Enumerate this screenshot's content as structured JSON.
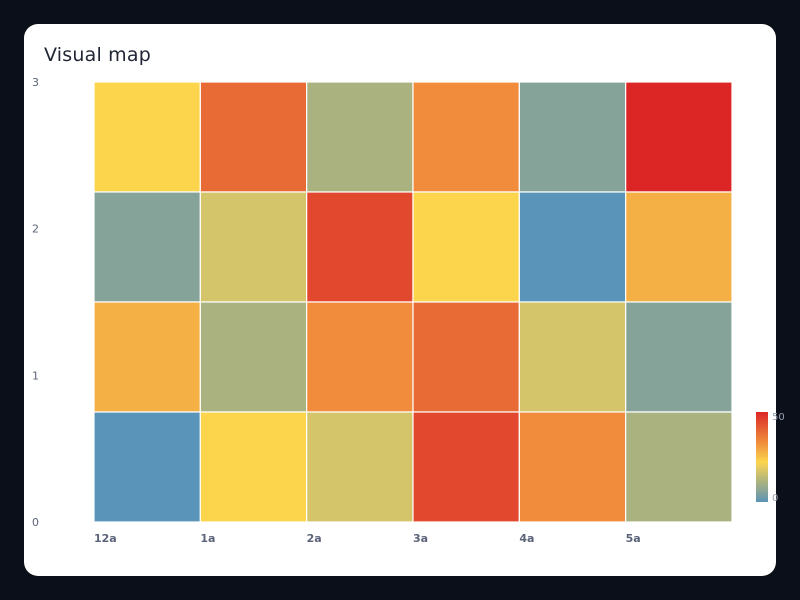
{
  "title": "Visual map",
  "colors": {
    "ramp": [
      "#5a94b8",
      "#86a39a",
      "#aab37f",
      "#d4c46a",
      "#fdd54d",
      "#f4b045",
      "#f08c3b",
      "#e86a35",
      "#e2482e",
      "#dc2626"
    ]
  },
  "chart_data": {
    "type": "heatmap",
    "title": "Visual map",
    "x_categories": [
      "12a",
      "1a",
      "2a",
      "3a",
      "4a",
      "5a"
    ],
    "y_ticks": [
      "0",
      "1",
      "2",
      "3"
    ],
    "rows": 4,
    "cols": 6,
    "values": [
      [
        20,
        39,
        12,
        31,
        6,
        48
      ],
      [
        6,
        15,
        44,
        20,
        0,
        26
      ],
      [
        27,
        11,
        34,
        39,
        16,
        5
      ],
      [
        0,
        21,
        16,
        44,
        34,
        10
      ]
    ],
    "visual_map": {
      "min": 0,
      "max": 50,
      "min_label": "0",
      "max_label": "50",
      "orient": "vertical",
      "position": "right-bottom"
    },
    "grid": false
  }
}
